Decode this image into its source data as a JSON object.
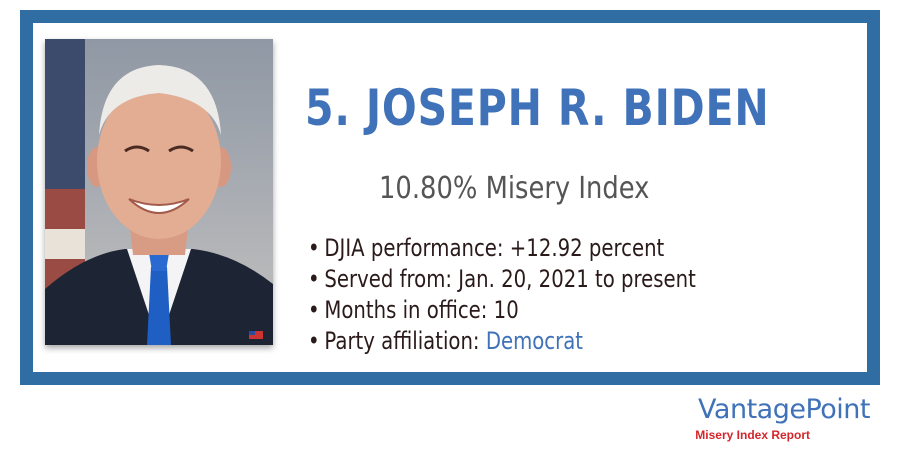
{
  "heading": {
    "name": "5. JOSEPH R. BIDEN",
    "misery_index": "10.80% Misery Index"
  },
  "facts": [
    {
      "text": "DJIA performance: +12.92 percent"
    },
    {
      "text": "Served from: Jan. 20, 2021 to present"
    },
    {
      "text": "Months in office: 10"
    },
    {
      "label": "Party affiliation: ",
      "value": "Democrat"
    }
  ],
  "bullet_glyph": "•",
  "brand": {
    "name": "VantagePoint",
    "subtitle": "Misery Index Report"
  },
  "colors": {
    "frame": "#2f6da3",
    "accent": "#3f72b8",
    "subtitle_red": "#d4262a"
  }
}
